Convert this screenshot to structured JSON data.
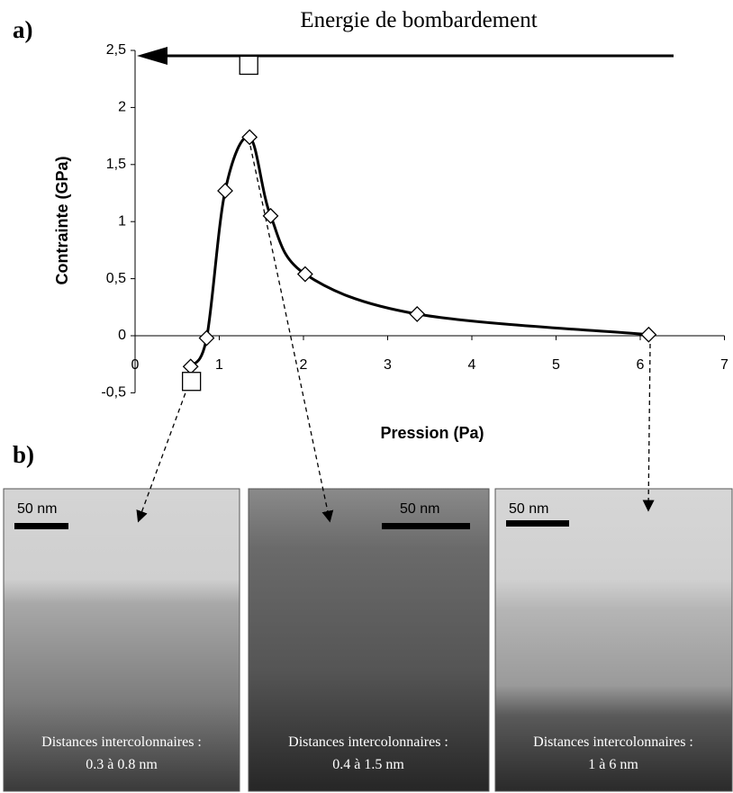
{
  "chart_data": {
    "type": "line",
    "annotation": "Energie de bombardement",
    "x_label": "Pression (Pa)",
    "y_label": "Contrainte (GPa)",
    "xlim": [
      0,
      7
    ],
    "ylim": [
      -0.5,
      2.5
    ],
    "xticks": [
      0,
      1,
      2,
      3,
      4,
      5,
      6,
      7
    ],
    "yticks": [
      {
        "value": -0.5,
        "label": "-0,5"
      },
      0,
      {
        "value": 0.5,
        "label": "0,5"
      },
      1,
      {
        "value": 1.5,
        "label": "1,5"
      },
      2,
      {
        "value": 2.5,
        "label": "2,5"
      }
    ],
    "series": [
      {
        "marker": "diamond",
        "line": true,
        "color": "#000000",
        "x": [
          0.66,
          0.85,
          1.07,
          1.36,
          1.61,
          2.02,
          3.35,
          6.1
        ],
        "values": [
          -0.27,
          -0.02,
          1.27,
          1.74,
          1.05,
          0.54,
          0.19,
          0.01
        ]
      },
      {
        "marker": "square",
        "line": false,
        "color": "#000000",
        "x": [
          0.67,
          1.35
        ],
        "values": [
          -0.4,
          2.37
        ]
      }
    ]
  },
  "panel_labels": [
    "a)",
    "b)"
  ],
  "images": [
    {
      "scale": "50 nm",
      "caption": [
        "Distances intercolonnaires :",
        "0.3 à 0.8 nm"
      ]
    },
    {
      "scale": "50 nm",
      "caption": [
        "Distances intercolonnaires :",
        "0.4 à 1.5 nm"
      ]
    },
    {
      "scale": "50 nm",
      "caption": [
        "Distances intercolonnaires :",
        "1 à 6 nm"
      ]
    }
  ]
}
